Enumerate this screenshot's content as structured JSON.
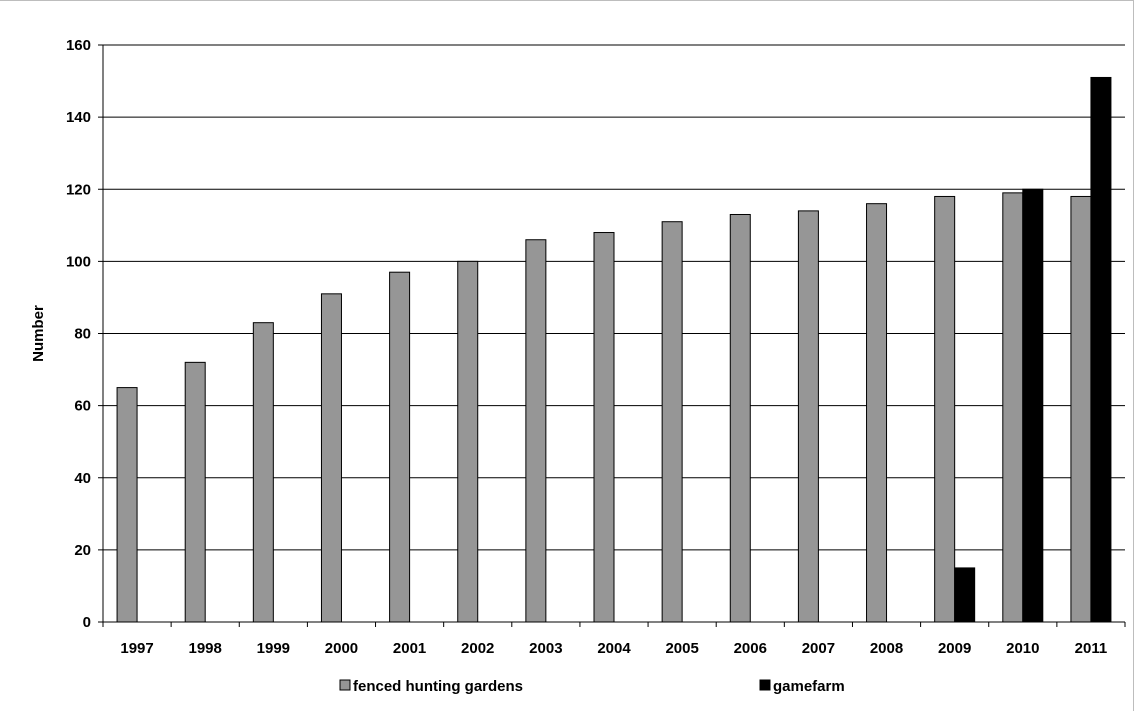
{
  "chart_data": {
    "type": "bar",
    "categories": [
      "1997",
      "1998",
      "1999",
      "2000",
      "2001",
      "2002",
      "2003",
      "2004",
      "2005",
      "2006",
      "2007",
      "2008",
      "2009",
      "2010",
      "2011"
    ],
    "series": [
      {
        "name": "fenced hunting gardens",
        "color": "#969696",
        "values": [
          65,
          72,
          83,
          91,
          97,
          100,
          106,
          108,
          111,
          113,
          114,
          116,
          118,
          119,
          118
        ]
      },
      {
        "name": "gamefarm",
        "color": "#000000",
        "values": [
          0,
          0,
          0,
          0,
          0,
          0,
          0,
          0,
          0,
          0,
          0,
          0,
          15,
          120,
          151
        ]
      }
    ],
    "xlabel": "",
    "ylabel": "Number",
    "ylim": [
      0,
      160
    ],
    "yticks": [
      0,
      20,
      40,
      60,
      80,
      100,
      120,
      140,
      160
    ],
    "grid": true,
    "legend": "bottom"
  }
}
